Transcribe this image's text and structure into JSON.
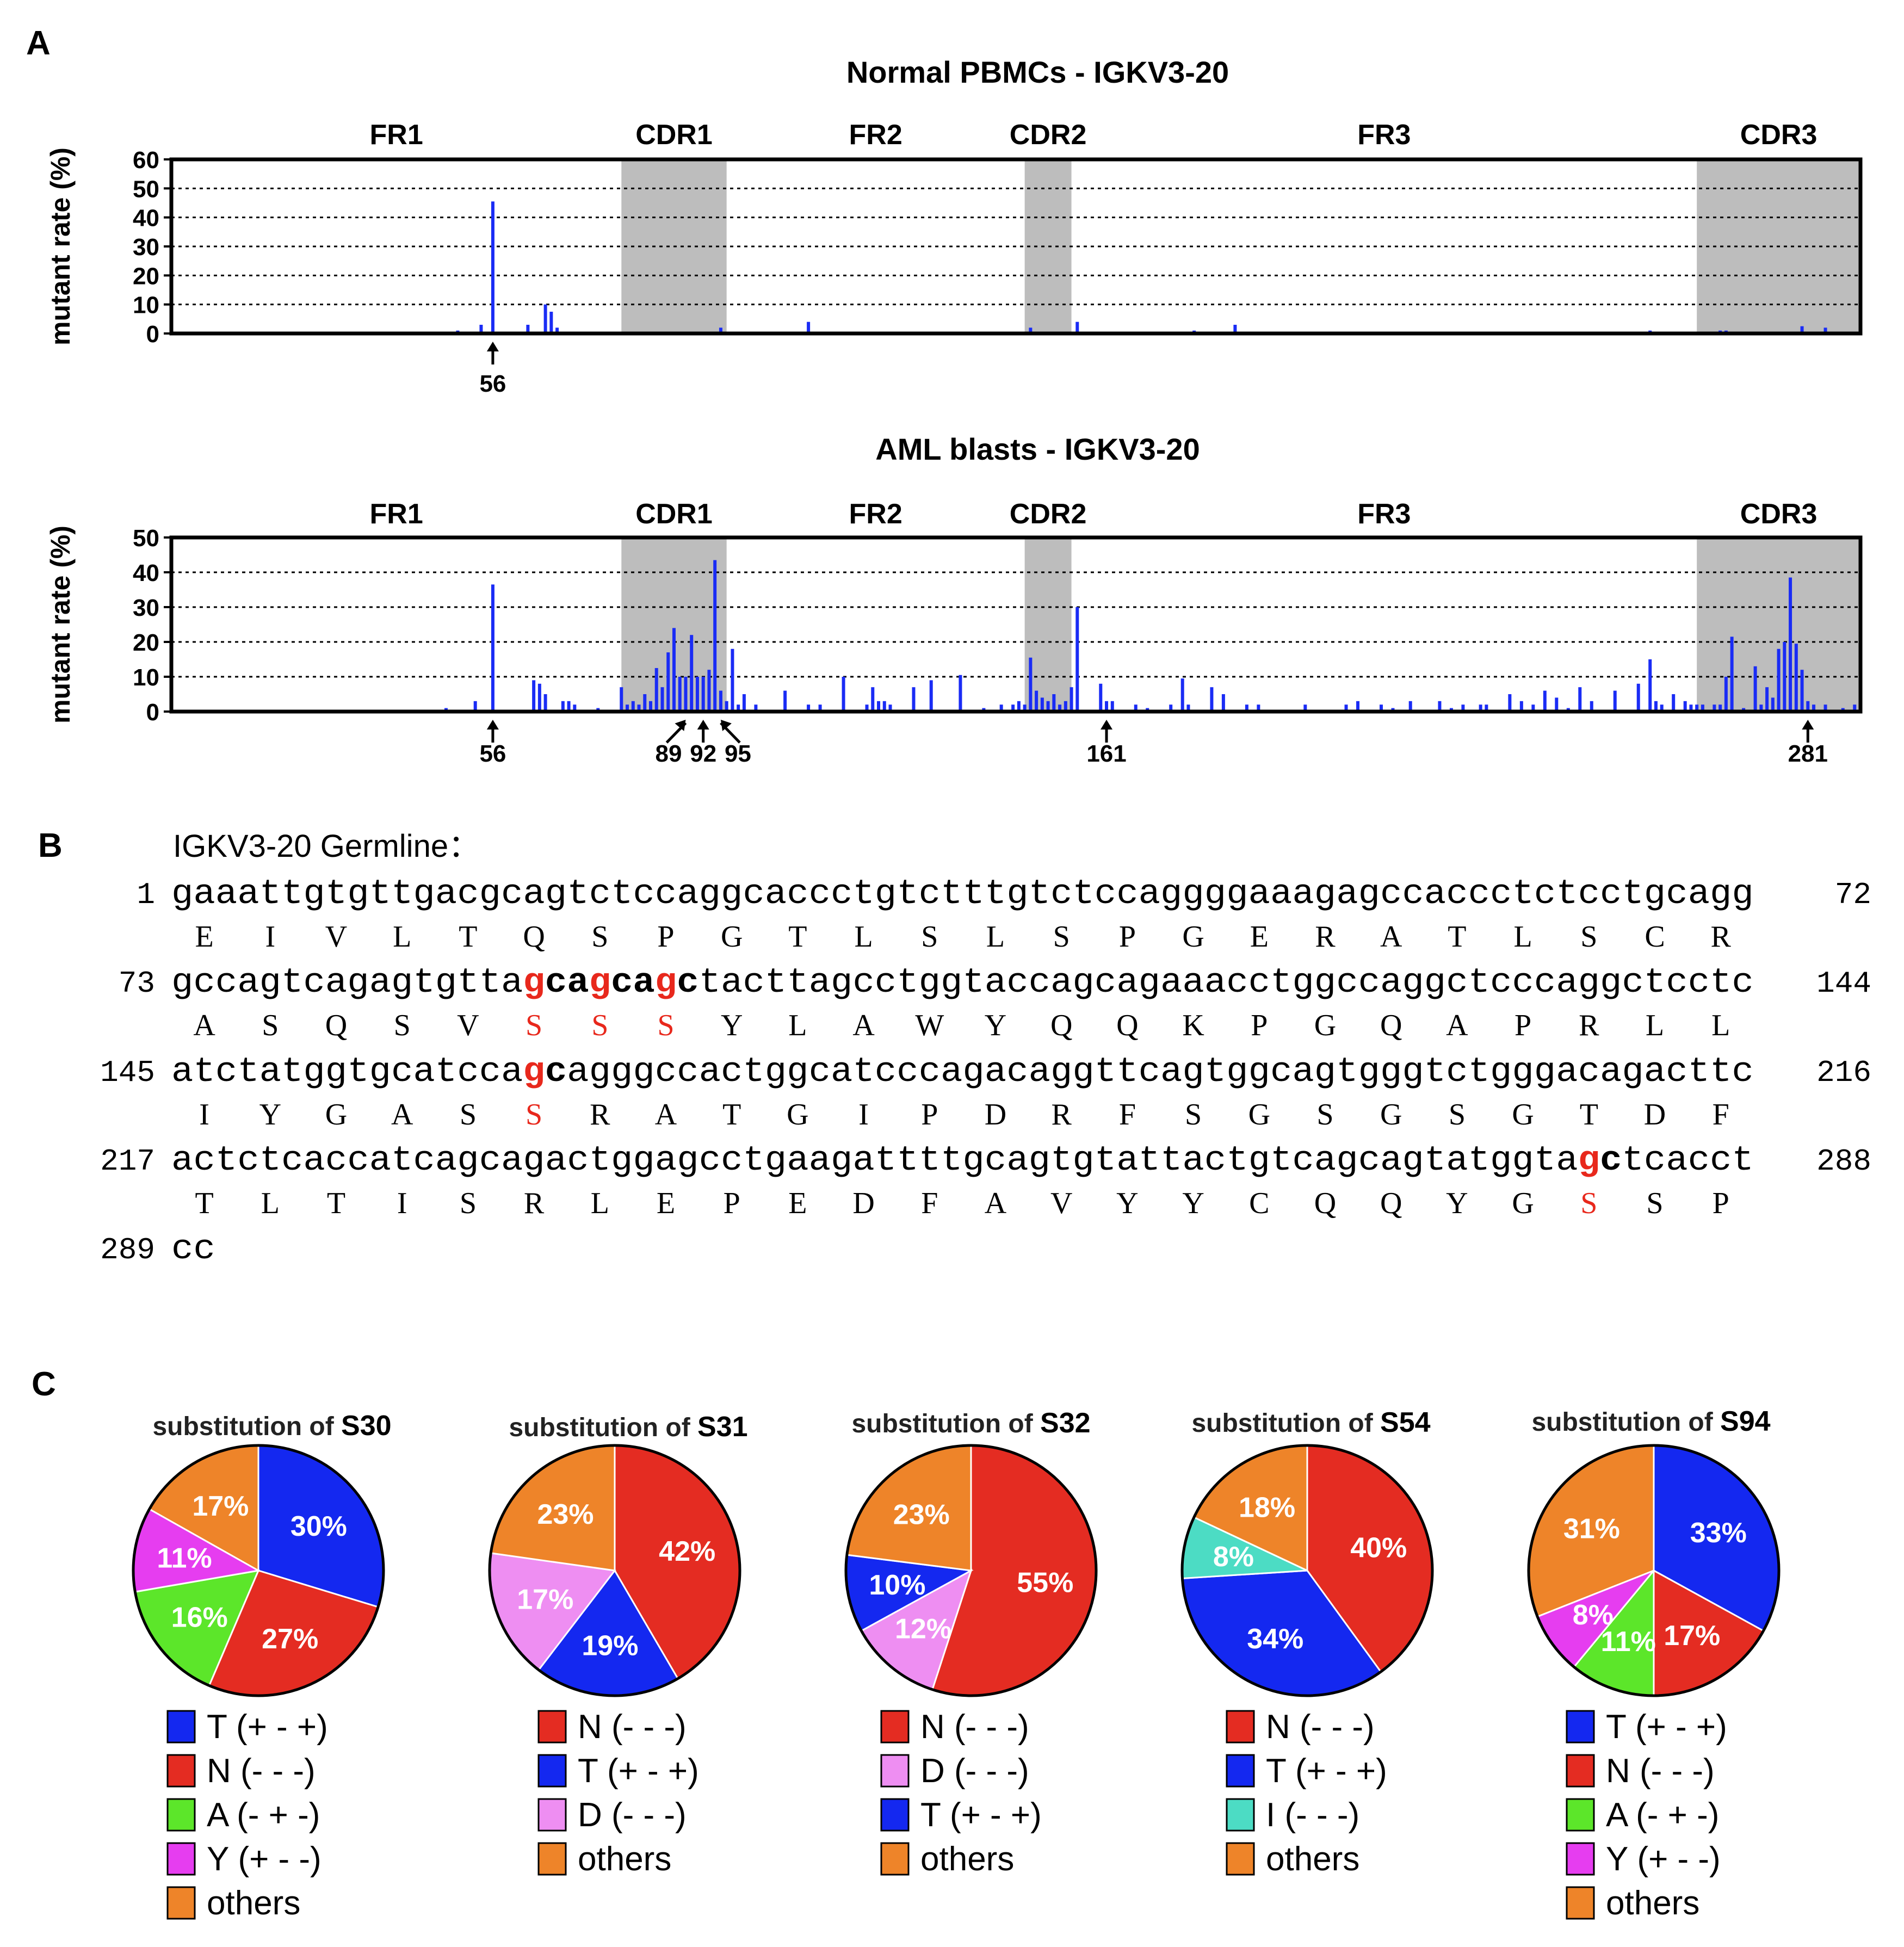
{
  "panel_labels": {
    "a": "A",
    "b": "B",
    "c": "C"
  },
  "colors": {
    "bar": "#1a2cf5",
    "shade": "#bdbdbd",
    "highlight": "#e8281c",
    "T": "#1428f0",
    "N": "#e42c22",
    "A": "#5ce62a",
    "Y": "#e63df0",
    "D": "#ee8ef2",
    "I": "#4cdcc4",
    "others": "#ee8429"
  },
  "chart_data": [
    {
      "type": "bar",
      "title": "Normal PBMCs - IGKV3-20",
      "ylabel": "mutant rate (%)",
      "ylim": [
        0,
        60
      ],
      "yticks": [
        "0",
        "10",
        "20",
        "30",
        "40",
        "50",
        "60"
      ],
      "xlim": [
        1,
        290
      ],
      "regions": [
        {
          "label": "FR1",
          "start": 1,
          "end": 78,
          "shaded": false
        },
        {
          "label": "CDR1",
          "start": 78,
          "end": 96,
          "shaded": true
        },
        {
          "label": "FR2",
          "start": 96,
          "end": 147,
          "shaded": false
        },
        {
          "label": "CDR2",
          "start": 147,
          "end": 155,
          "shaded": true
        },
        {
          "label": "FR3",
          "start": 155,
          "end": 262,
          "shaded": false
        },
        {
          "label": "CDR3",
          "start": 262,
          "end": 290,
          "shaded": true
        }
      ],
      "x": [
        50,
        54,
        56,
        62,
        65,
        66,
        67,
        95,
        110,
        148,
        156,
        176,
        183,
        254,
        266,
        267,
        280,
        284
      ],
      "values": [
        1,
        3,
        45.5,
        3,
        10,
        7.5,
        2,
        2,
        4,
        2,
        4,
        1,
        3,
        1,
        1,
        1,
        2.5,
        2
      ],
      "arrows": [
        "56"
      ]
    },
    {
      "type": "bar",
      "title": "AML blasts - IGKV3-20",
      "ylabel": "mutant rate (%)",
      "ylim": [
        0,
        50
      ],
      "yticks": [
        "0",
        "10",
        "20",
        "30",
        "40",
        "50"
      ],
      "xlim": [
        1,
        290
      ],
      "regions": [
        {
          "label": "FR1",
          "start": 1,
          "end": 78,
          "shaded": false
        },
        {
          "label": "CDR1",
          "start": 78,
          "end": 96,
          "shaded": true
        },
        {
          "label": "FR2",
          "start": 96,
          "end": 147,
          "shaded": false
        },
        {
          "label": "CDR2",
          "start": 147,
          "end": 155,
          "shaded": true
        },
        {
          "label": "FR3",
          "start": 155,
          "end": 262,
          "shaded": false
        },
        {
          "label": "CDR3",
          "start": 262,
          "end": 290,
          "shaded": true
        }
      ],
      "x": [
        48,
        53,
        56,
        63,
        64,
        65,
        68,
        69,
        70,
        74,
        78,
        79,
        80,
        81,
        82,
        83,
        84,
        85,
        86,
        87,
        88,
        89,
        90,
        91,
        92,
        93,
        94,
        95,
        96,
        97,
        98,
        99,
        101,
        106,
        110,
        112,
        116,
        120,
        121,
        122,
        123,
        124,
        128,
        131,
        136,
        140,
        143,
        145,
        146,
        147,
        148,
        149,
        150,
        151,
        152,
        153,
        154,
        155,
        156,
        160,
        161,
        162,
        166,
        168,
        172,
        174,
        175,
        179,
        181,
        185,
        187,
        195,
        202,
        204,
        208,
        210,
        213,
        218,
        220,
        222,
        225,
        226,
        230,
        232,
        234,
        236,
        238,
        240,
        242,
        244,
        248,
        252,
        254,
        255,
        256,
        258,
        260,
        261,
        262,
        263,
        265,
        266,
        267,
        268,
        270,
        272,
        273,
        274,
        275,
        276,
        277,
        278,
        279,
        280,
        281,
        282,
        284,
        287,
        289
      ],
      "values": [
        1,
        3,
        36.5,
        9,
        8,
        5,
        3,
        3,
        2,
        1,
        7,
        2,
        3,
        2,
        5,
        3,
        12.5,
        7,
        17,
        24,
        10,
        10,
        22,
        10,
        10,
        12,
        43.5,
        6,
        3,
        18,
        2,
        5,
        2,
        6,
        2,
        2,
        10,
        2,
        7,
        3,
        3,
        2,
        7,
        9,
        10.5,
        1,
        2,
        2,
        3,
        2,
        15.5,
        6,
        4,
        3,
        5,
        2,
        3,
        7,
        30,
        8,
        3,
        3,
        2,
        1,
        2,
        9.5,
        2,
        7,
        5,
        2,
        2,
        2,
        2,
        3,
        2,
        1,
        3,
        3,
        1,
        2,
        2,
        2,
        5,
        3,
        2,
        6,
        4,
        1,
        7,
        3,
        6,
        8,
        15,
        3,
        2,
        5,
        3,
        2,
        2,
        2,
        2,
        2,
        10,
        21.5,
        1,
        13,
        2,
        7,
        4,
        18,
        20,
        38.5,
        19.5,
        12,
        3,
        2,
        2,
        1,
        2
      ],
      "arrows": [
        "56",
        "89",
        "92",
        "95",
        "161",
        "281"
      ]
    },
    {
      "type": "pie",
      "title_prefix": "substitution of ",
      "title_bold": "S30",
      "slices": [
        {
          "label": "T (+ - +)",
          "key": "T",
          "percent": 30,
          "pct_label": "30%"
        },
        {
          "label": "N (- - -)",
          "key": "N",
          "percent": 27,
          "pct_label": "27%"
        },
        {
          "label": "A (- + -)",
          "key": "A",
          "percent": 16,
          "pct_label": "16%"
        },
        {
          "label": "Y (+ - -)",
          "key": "Y",
          "percent": 11,
          "pct_label": "11%"
        },
        {
          "label": "others",
          "key": "others",
          "percent": 17,
          "pct_label": "17%"
        }
      ]
    },
    {
      "type": "pie",
      "title_prefix": "substitution of ",
      "title_bold": "S31",
      "slices": [
        {
          "label": "N (- - -)",
          "key": "N",
          "percent": 42,
          "pct_label": "42%"
        },
        {
          "label": "T (+ - +)",
          "key": "T",
          "percent": 19,
          "pct_label": "19%"
        },
        {
          "label": "D (- - -)",
          "key": "D",
          "percent": 17,
          "pct_label": "17%"
        },
        {
          "label": "others",
          "key": "others",
          "percent": 23,
          "pct_label": "23%"
        }
      ]
    },
    {
      "type": "pie",
      "title_prefix": "substitution of ",
      "title_bold": "S32",
      "slices": [
        {
          "label": "N (- - -)",
          "key": "N",
          "percent": 55,
          "pct_label": "55%"
        },
        {
          "label": "D (- - -)",
          "key": "D",
          "percent": 12,
          "pct_label": "12%"
        },
        {
          "label": "T (+ - +)",
          "key": "T",
          "percent": 10,
          "pct_label": "10%"
        },
        {
          "label": "others",
          "key": "others",
          "percent": 23,
          "pct_label": "23%"
        }
      ]
    },
    {
      "type": "pie",
      "title_prefix": "substitution of ",
      "title_bold": "S54",
      "slices": [
        {
          "label": "N (- - -)",
          "key": "N",
          "percent": 40,
          "pct_label": "40%"
        },
        {
          "label": "T (+ - +)",
          "key": "T",
          "percent": 34,
          "pct_label": "34%"
        },
        {
          "label": "I (- - -)",
          "key": "I",
          "percent": 8,
          "pct_label": "8%"
        },
        {
          "label": "others",
          "key": "others",
          "percent": 18,
          "pct_label": "18%"
        }
      ]
    },
    {
      "type": "pie",
      "title_prefix": "substitution of ",
      "title_bold": "S94",
      "slices": [
        {
          "label": "T (+ - +)",
          "key": "T",
          "percent": 33,
          "pct_label": "33%"
        },
        {
          "label": "N (- - -)",
          "key": "N",
          "percent": 17,
          "pct_label": "17%"
        },
        {
          "label": "A (- + -)",
          "key": "A",
          "percent": 11,
          "pct_label": "11%"
        },
        {
          "label": "Y (+ - -)",
          "key": "Y",
          "percent": 8,
          "pct_label": "8%"
        },
        {
          "label": "others",
          "key": "others",
          "percent": 31,
          "pct_label": "31%"
        }
      ]
    }
  ],
  "sequence": {
    "title": "IGKV3-20 Germline：",
    "rows": [
      {
        "start": "1",
        "end": "72",
        "nt": [
          {
            "t": "gaaattgtgttgacgcagtctccaggcaccctgtctttgtctccaggggaaagagccaccctctcctgcagg",
            "s": "n"
          }
        ],
        "aa": [
          "E",
          "I",
          "V",
          "L",
          "T",
          "Q",
          "S",
          "P",
          "G",
          "T",
          "L",
          "S",
          "L",
          "S",
          "P",
          "G",
          "E",
          "R",
          "A",
          "T",
          "L",
          "S",
          "C",
          "R"
        ],
        "aa_red": []
      },
      {
        "start": "73",
        "end": "144",
        "nt": [
          {
            "t": "gccagtcagagtgtta",
            "s": "n"
          },
          {
            "t": "g",
            "s": "r"
          },
          {
            "t": "ca",
            "s": "b"
          },
          {
            "t": "g",
            "s": "r"
          },
          {
            "t": "ca",
            "s": "b"
          },
          {
            "t": "g",
            "s": "r"
          },
          {
            "t": "c",
            "s": "b"
          },
          {
            "t": "tacttagcctggtaccagcagaaacctggccaggctcccaggctcctc",
            "s": "n"
          }
        ],
        "aa": [
          "A",
          "S",
          "Q",
          "S",
          "V",
          "S",
          "S",
          "S",
          "Y",
          "L",
          "A",
          "W",
          "Y",
          "Q",
          "Q",
          "K",
          "P",
          "G",
          "Q",
          "A",
          "P",
          "R",
          "L",
          "L"
        ],
        "aa_red": [
          5,
          6,
          7
        ]
      },
      {
        "start": "145",
        "end": "216",
        "nt": [
          {
            "t": "atctatggtgcatcca",
            "s": "n"
          },
          {
            "t": "g",
            "s": "r"
          },
          {
            "t": "c",
            "s": "b"
          },
          {
            "t": "agggccactggcatcccagacaggttcagtggcagtgggtctgggacagacttc",
            "s": "n"
          }
        ],
        "aa": [
          "I",
          "Y",
          "G",
          "A",
          "S",
          "S",
          "R",
          "A",
          "T",
          "G",
          "I",
          "P",
          "D",
          "R",
          "F",
          "S",
          "G",
          "S",
          "G",
          "S",
          "G",
          "T",
          "D",
          "F"
        ],
        "aa_red": [
          5
        ]
      },
      {
        "start": "217",
        "end": "288",
        "nt": [
          {
            "t": "actctcaccatcagcagactggagcctgaagattttgcagtgtattactgtcagcagtatggta",
            "s": "n"
          },
          {
            "t": "g",
            "s": "r"
          },
          {
            "t": "c",
            "s": "b"
          },
          {
            "t": "tcacct",
            "s": "n"
          }
        ],
        "aa": [
          "T",
          "L",
          "T",
          "I",
          "S",
          "R",
          "L",
          "E",
          "P",
          "E",
          "D",
          "F",
          "A",
          "V",
          "Y",
          "Y",
          "C",
          "Q",
          "Q",
          "Y",
          "G",
          "S",
          "S",
          "P"
        ],
        "aa_red": [
          21
        ]
      },
      {
        "start": "289",
        "end": "",
        "nt": [
          {
            "t": "cc",
            "s": "n"
          }
        ],
        "aa": [],
        "aa_red": []
      }
    ]
  }
}
